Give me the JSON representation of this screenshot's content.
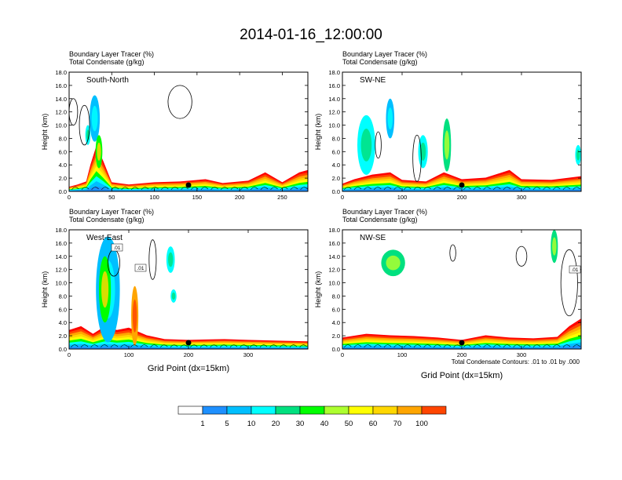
{
  "figure_title": "2014-01-16_12:00:00",
  "chart_data": [
    {
      "type": "area",
      "panel_label": "South-North",
      "subtitle_line1": "Boundary Layer Tracer   (%)",
      "subtitle_line2": "Total Condensate   (g/kg)",
      "ylabel": "Height (km)",
      "xlabel": "",
      "xlim": [
        0,
        280
      ],
      "ylim": [
        0,
        18
      ],
      "xticks": [
        0,
        50,
        100,
        150,
        200,
        250
      ],
      "yticks": [
        "0.0",
        "2.0",
        "4.0",
        "6.0",
        "8.0",
        "10.0",
        "12.0",
        "14.0",
        "16.0",
        "18.0"
      ],
      "marker_x": 140,
      "tracer_base": [
        {
          "x": 0,
          "h": 0.6
        },
        {
          "x": 10,
          "h": 0.9
        },
        {
          "x": 20,
          "h": 1.3
        },
        {
          "x": 25,
          "h": 3.5
        },
        {
          "x": 32,
          "h": 6
        },
        {
          "x": 40,
          "h": 4
        },
        {
          "x": 50,
          "h": 1.2
        },
        {
          "x": 70,
          "h": 0.9
        },
        {
          "x": 100,
          "h": 1.2
        },
        {
          "x": 130,
          "h": 1.3
        },
        {
          "x": 160,
          "h": 1.6
        },
        {
          "x": 180,
          "h": 1.1
        },
        {
          "x": 210,
          "h": 1.4
        },
        {
          "x": 230,
          "h": 2.5
        },
        {
          "x": 250,
          "h": 1.2
        },
        {
          "x": 270,
          "h": 2.5
        },
        {
          "x": 280,
          "h": 2.8
        }
      ],
      "plumes": [
        {
          "x": 30,
          "y": 11,
          "w": 12,
          "h": 7,
          "level": 5
        },
        {
          "x": 35,
          "y": 6,
          "w": 8,
          "h": 5,
          "level": 30
        },
        {
          "x": 22,
          "y": 8.5,
          "w": 6,
          "h": 3,
          "level": 10
        }
      ],
      "contours": [
        {
          "x": 130,
          "y": 13.5,
          "w": 28,
          "h": 5
        },
        {
          "x": 5,
          "y": 12,
          "w": 10,
          "h": 4
        },
        {
          "x": 18,
          "y": 10,
          "w": 12,
          "h": 6
        }
      ]
    },
    {
      "type": "area",
      "panel_label": "SW-NE",
      "subtitle_line1": "Boundary Layer Tracer   (%)",
      "subtitle_line2": "Total Condensate   (g/kg)",
      "ylabel": "Height (km)",
      "xlabel": "",
      "xlim": [
        0,
        400
      ],
      "ylim": [
        0,
        18
      ],
      "xticks": [
        0,
        100,
        200,
        300
      ],
      "yticks": [
        "0.0",
        "2.0",
        "4.0",
        "6.0",
        "8.0",
        "10.0",
        "12.0",
        "14.0",
        "16.0",
        "18.0"
      ],
      "marker_x": 200,
      "tracer_base": [
        {
          "x": 0,
          "h": 1
        },
        {
          "x": 20,
          "h": 1.6
        },
        {
          "x": 50,
          "h": 2.2
        },
        {
          "x": 80,
          "h": 2.5
        },
        {
          "x": 100,
          "h": 1.5
        },
        {
          "x": 140,
          "h": 1.3
        },
        {
          "x": 170,
          "h": 2.5
        },
        {
          "x": 200,
          "h": 1.6
        },
        {
          "x": 240,
          "h": 1.8
        },
        {
          "x": 280,
          "h": 2.8
        },
        {
          "x": 300,
          "h": 1.6
        },
        {
          "x": 350,
          "h": 1.5
        },
        {
          "x": 400,
          "h": 2
        }
      ],
      "plumes": [
        {
          "x": 80,
          "y": 11,
          "w": 14,
          "h": 6,
          "level": 5
        },
        {
          "x": 40,
          "y": 7,
          "w": 30,
          "h": 9,
          "level": 10
        },
        {
          "x": 175,
          "y": 7,
          "w": 14,
          "h": 8,
          "level": 20
        },
        {
          "x": 135,
          "y": 6,
          "w": 16,
          "h": 5,
          "level": 10
        },
        {
          "x": 395,
          "y": 5.5,
          "w": 10,
          "h": 3,
          "level": 10
        }
      ],
      "contours": [
        {
          "x": 125,
          "y": 5,
          "w": 14,
          "h": 7
        },
        {
          "x": 60,
          "y": 7,
          "w": 10,
          "h": 4
        }
      ]
    },
    {
      "type": "area",
      "panel_label": "West-East",
      "subtitle_line1": "Boundary Layer Tracer   (%)",
      "subtitle_line2": "Total Condensate   (g/kg)",
      "ylabel": "Height (km)",
      "xlabel": "",
      "xlim": [
        0,
        400
      ],
      "ylim": [
        0,
        18
      ],
      "xticks": [
        0,
        100,
        200,
        300
      ],
      "yticks": [
        "0.0",
        "2.0",
        "4.0",
        "6.0",
        "8.0",
        "10.0",
        "12.0",
        "14.0",
        "16.0",
        "18.0"
      ],
      "marker_x": 200,
      "contour_labels": [
        ".01",
        ".01"
      ],
      "tracer_base": [
        {
          "x": 0,
          "h": 2.5
        },
        {
          "x": 20,
          "h": 3
        },
        {
          "x": 40,
          "h": 2
        },
        {
          "x": 60,
          "h": 3
        },
        {
          "x": 80,
          "h": 2.5
        },
        {
          "x": 100,
          "h": 2.8
        },
        {
          "x": 130,
          "h": 1.8
        },
        {
          "x": 160,
          "h": 1.3
        },
        {
          "x": 200,
          "h": 1.2
        },
        {
          "x": 260,
          "h": 1.3
        },
        {
          "x": 300,
          "h": 1.2
        },
        {
          "x": 350,
          "h": 1.1
        },
        {
          "x": 400,
          "h": 1
        }
      ],
      "plumes": [
        {
          "x": 65,
          "y": 9,
          "w": 40,
          "h": 16,
          "level": 5
        },
        {
          "x": 60,
          "y": 9,
          "w": 20,
          "h": 10,
          "level": 30
        },
        {
          "x": 110,
          "y": 5,
          "w": 12,
          "h": 9,
          "level": 70
        },
        {
          "x": 170,
          "y": 13.5,
          "w": 14,
          "h": 4,
          "level": 10
        },
        {
          "x": 175,
          "y": 8,
          "w": 10,
          "h": 2,
          "level": 10
        }
      ],
      "contours": [
        {
          "x": 75,
          "y": 13,
          "w": 20,
          "h": 4
        },
        {
          "x": 140,
          "y": 13.5,
          "w": 12,
          "h": 6
        }
      ]
    },
    {
      "type": "area",
      "panel_label": "NW-SE",
      "subtitle_line1": "Boundary Layer Tracer   (%)",
      "subtitle_line2": "Total Condensate   (g/kg)",
      "ylabel": "Height (km)",
      "xlabel": "Grid Point (dx=15km)",
      "xlim": [
        0,
        400
      ],
      "ylim": [
        0,
        18
      ],
      "xticks": [
        0,
        100,
        200,
        300
      ],
      "yticks": [
        "0.0",
        "2.0",
        "4.0",
        "6.0",
        "8.0",
        "10.0",
        "12.0",
        "14.0",
        "16.0",
        "18.0"
      ],
      "marker_x": 200,
      "contour_labels": [
        ".01"
      ],
      "tracer_base": [
        {
          "x": 0,
          "h": 1.5
        },
        {
          "x": 40,
          "h": 2
        },
        {
          "x": 80,
          "h": 1.8
        },
        {
          "x": 120,
          "h": 1.7
        },
        {
          "x": 160,
          "h": 1.5
        },
        {
          "x": 200,
          "h": 1.2
        },
        {
          "x": 240,
          "h": 1.8
        },
        {
          "x": 280,
          "h": 1.5
        },
        {
          "x": 320,
          "h": 1.4
        },
        {
          "x": 360,
          "h": 1.6
        },
        {
          "x": 380,
          "h": 3
        },
        {
          "x": 400,
          "h": 4
        }
      ],
      "plumes": [
        {
          "x": 85,
          "y": 13,
          "w": 40,
          "h": 4,
          "level": 20
        },
        {
          "x": 355,
          "y": 15.5,
          "w": 12,
          "h": 5,
          "level": 20
        }
      ],
      "contours": [
        {
          "x": 300,
          "y": 14,
          "w": 18,
          "h": 3
        },
        {
          "x": 185,
          "y": 14.5,
          "w": 10,
          "h": 2.5
        },
        {
          "x": 380,
          "y": 10,
          "w": 28,
          "h": 10
        }
      ]
    }
  ],
  "bottom_xlabel_left": "Grid Point (dx=15km)",
  "contour_note": "Total Condensate Contours: .01 to .01 by .000",
  "colorbar": {
    "labels": [
      "1",
      "5",
      "10",
      "20",
      "30",
      "40",
      "50",
      "60",
      "70",
      "100"
    ],
    "colors": [
      "#ffffff",
      "#1e90ff",
      "#00bfff",
      "#00ffff",
      "#00e07f",
      "#00ff00",
      "#adff2f",
      "#ffff00",
      "#ffd700",
      "#ffa500",
      "#ff4500",
      "#ff0000"
    ]
  }
}
